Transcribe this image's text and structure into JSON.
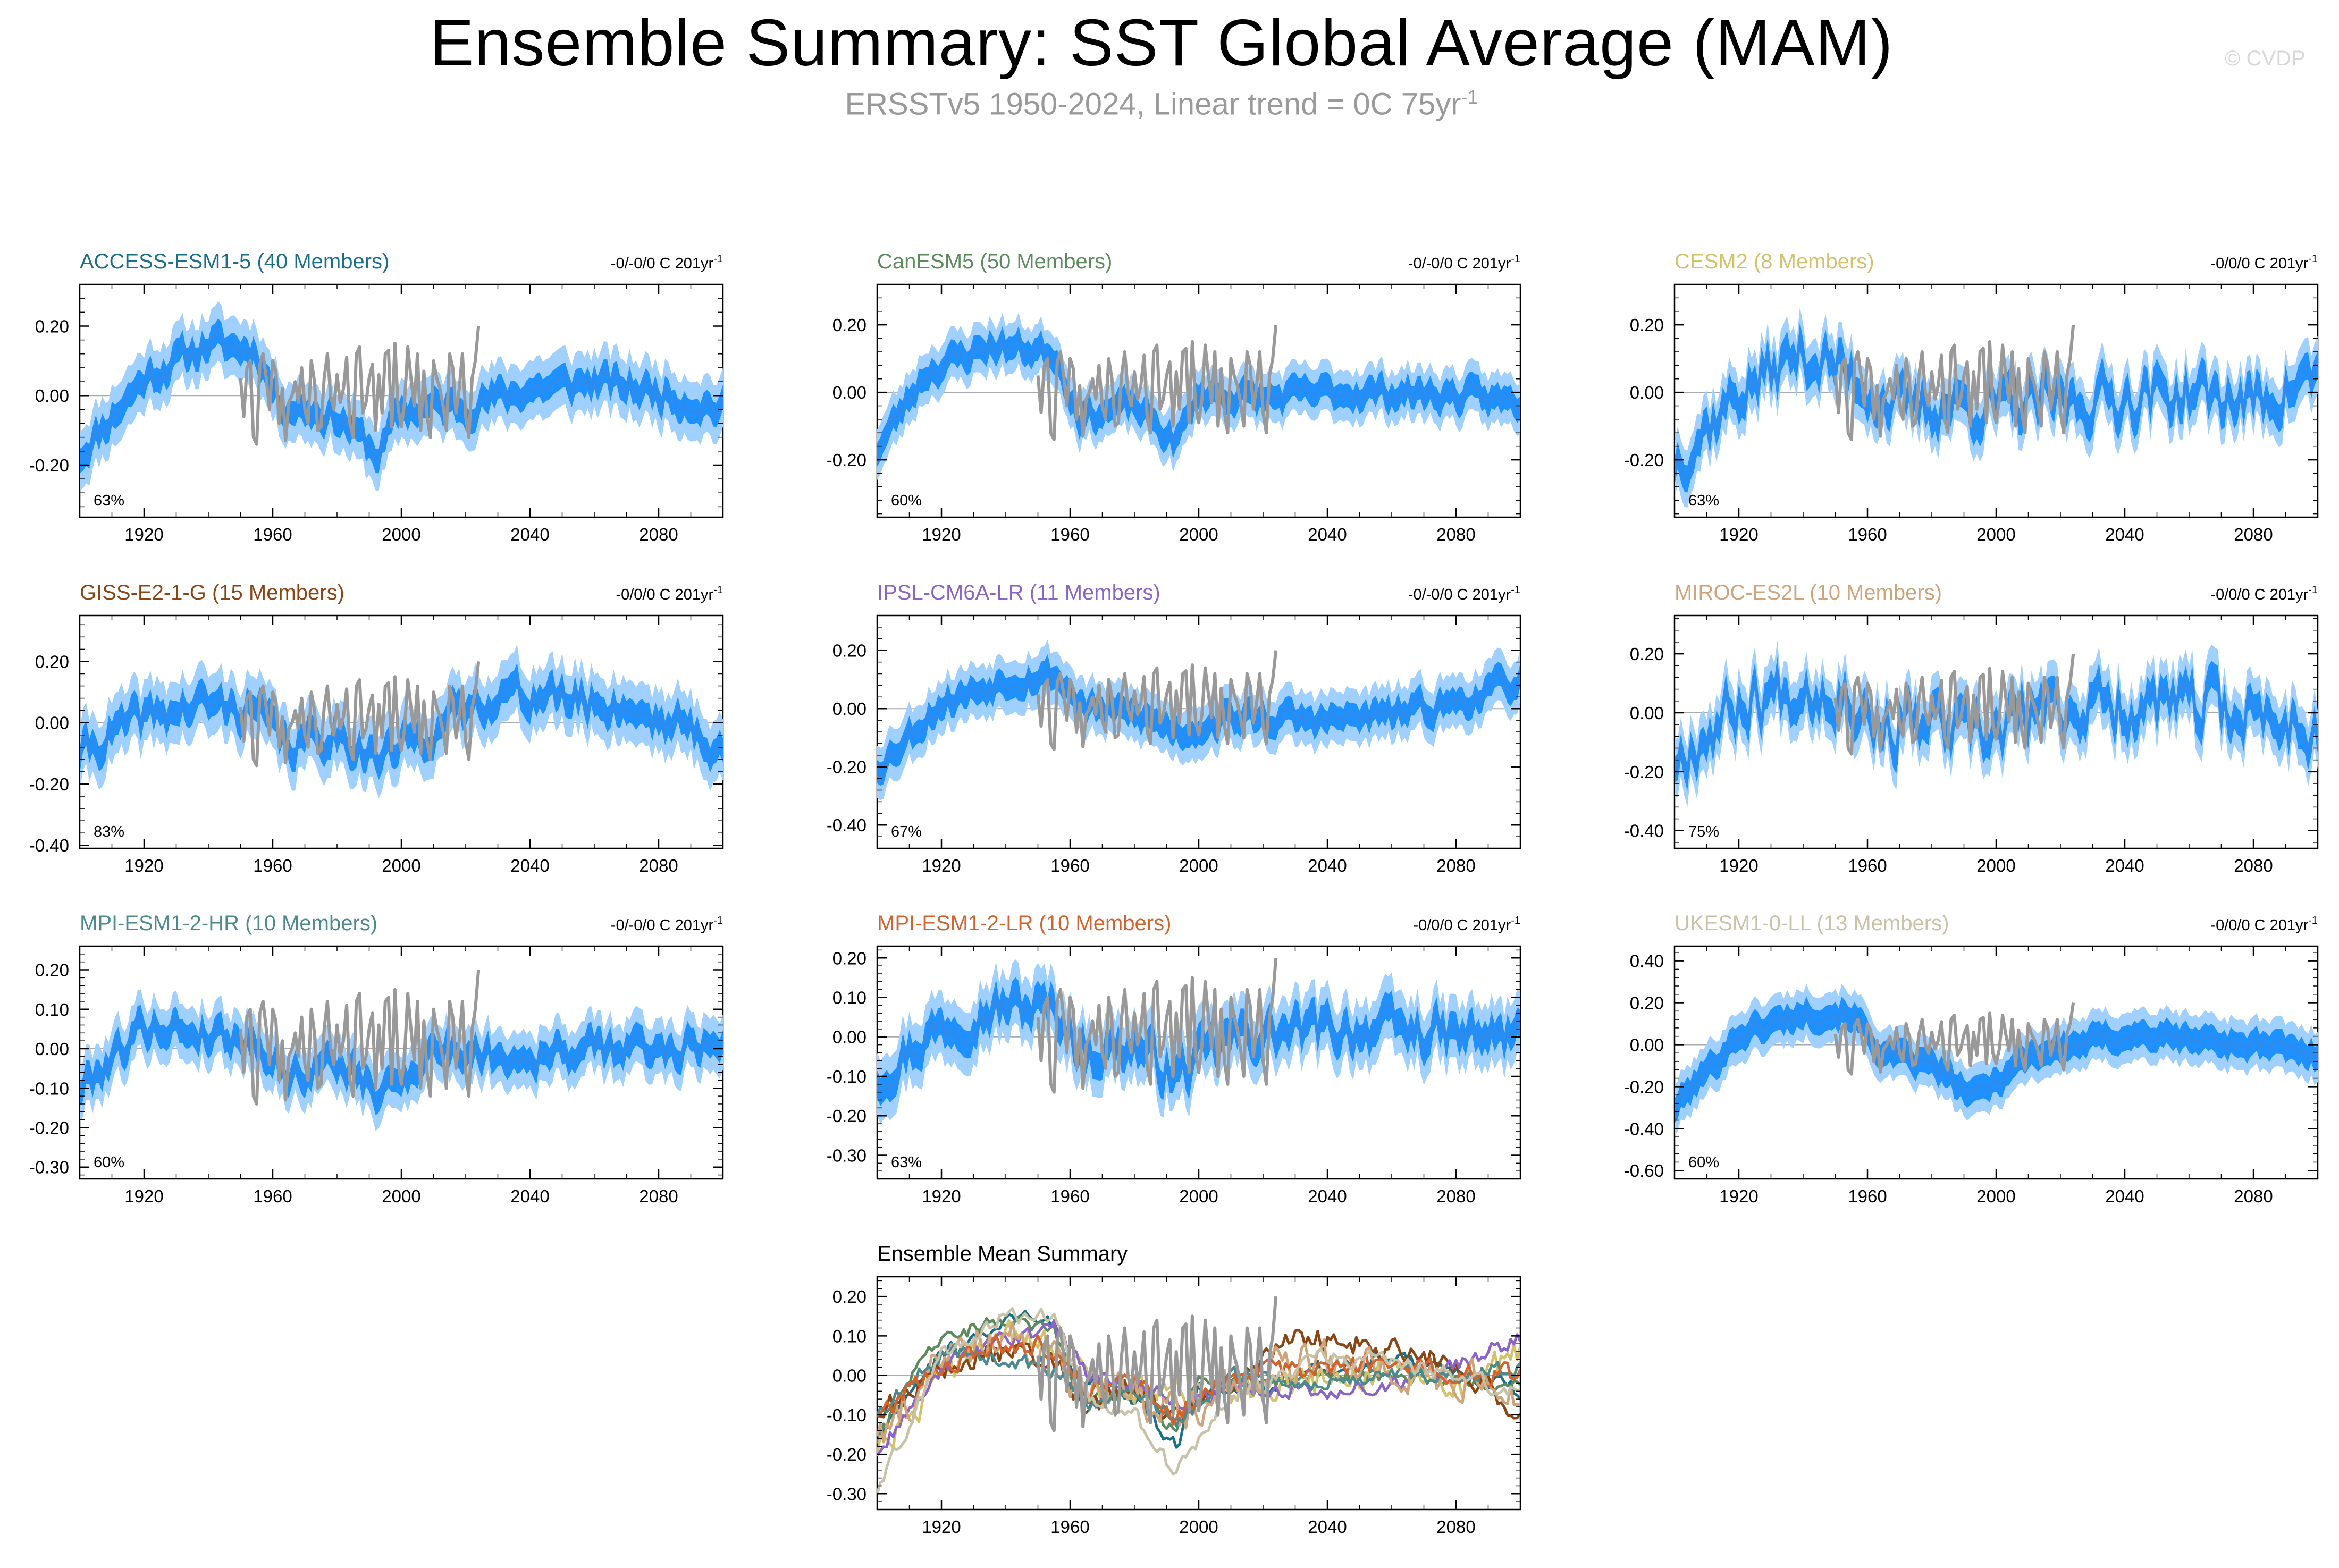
{
  "header": {
    "title": "Ensemble Summary: SST Global Average (MAM)",
    "subtitle_main": "ERSSTv5 1950-2024, Linear trend = 0C 75yr",
    "subtitle_sup": "-1",
    "watermark": "© CVDP"
  },
  "colors": {
    "ensemble_mean": "#2b8cee",
    "inner_spread": "#1e90ff",
    "outer_spread": "#9fd0ff",
    "observations": "#999999"
  },
  "chart_data": [
    {
      "type": "line",
      "title": "ACCESS-ESM1-5 (40 Members)",
      "title_color": "#1a6f8a",
      "trend_main": "-0/-0/0 C 201yr",
      "trend_sup": "-1",
      "percent": "63%",
      "ylim": [
        -0.35,
        0.32
      ],
      "yticks": [
        -0.2,
        0.0,
        0.2
      ],
      "ytick_labels": [
        "-0.20",
        "0.00",
        "0.20"
      ],
      "xlim": [
        1900,
        2100
      ],
      "xticks": [
        1920,
        1960,
        2000,
        2040,
        2080
      ],
      "xtick_labels": [
        "1920",
        "1960",
        "2000",
        "2040",
        "2080"
      ],
      "anchors": [
        [
          1900,
          -0.17
        ],
        [
          1920,
          0.05
        ],
        [
          1940,
          0.15
        ],
        [
          1955,
          0.13
        ],
        [
          1962,
          -0.02
        ],
        [
          1980,
          -0.06
        ],
        [
          1993,
          -0.17
        ],
        [
          2000,
          -0.04
        ],
        [
          2020,
          -0.03
        ],
        [
          2040,
          0.02
        ],
        [
          2060,
          0.04
        ],
        [
          2080,
          0.01
        ],
        [
          2100,
          -0.04
        ]
      ],
      "seed": 11,
      "noise": 0.035,
      "inner": 0.035,
      "outer": 0.085
    },
    {
      "type": "line",
      "title": "CanESM5 (50 Members)",
      "title_color": "#5b8a5d",
      "trend_main": "-0/-0/0 C 201yr",
      "trend_sup": "-1",
      "percent": "60%",
      "ylim": [
        -0.37,
        0.32
      ],
      "yticks": [
        -0.2,
        0.0,
        0.2
      ],
      "ytick_labels": [
        "-0.20",
        "0.00",
        "0.20"
      ],
      "xlim": [
        1900,
        2100
      ],
      "xticks": [
        1920,
        1960,
        2000,
        2040,
        2080
      ],
      "xtick_labels": [
        "1920",
        "1960",
        "2000",
        "2040",
        "2080"
      ],
      "anchors": [
        [
          1900,
          -0.17
        ],
        [
          1915,
          0.06
        ],
        [
          1935,
          0.14
        ],
        [
          1955,
          0.12
        ],
        [
          1963,
          -0.07
        ],
        [
          1980,
          -0.04
        ],
        [
          1993,
          -0.15
        ],
        [
          2000,
          0.0
        ],
        [
          2020,
          -0.02
        ],
        [
          2040,
          0.0
        ],
        [
          2060,
          0.0
        ],
        [
          2080,
          -0.01
        ],
        [
          2100,
          -0.03
        ]
      ],
      "seed": 23,
      "noise": 0.03,
      "inner": 0.035,
      "outer": 0.075
    },
    {
      "type": "line",
      "title": "CESM2 (8 Members)",
      "title_color": "#d3c16b",
      "trend_main": "-0/0/0 C 201yr",
      "trend_sup": "-1",
      "percent": "63%",
      "ylim": [
        -0.37,
        0.32
      ],
      "yticks": [
        -0.2,
        0.0,
        0.2
      ],
      "ytick_labels": [
        "-0.20",
        "0.00",
        "0.20"
      ],
      "xlim": [
        1900,
        2100
      ],
      "xticks": [
        1920,
        1960,
        2000,
        2040,
        2080
      ],
      "xtick_labels": [
        "1920",
        "1960",
        "2000",
        "2040",
        "2080"
      ],
      "anchors": [
        [
          1900,
          -0.2
        ],
        [
          1920,
          0.0
        ],
        [
          1940,
          0.12
        ],
        [
          1955,
          0.05
        ],
        [
          1970,
          -0.05
        ],
        [
          1990,
          -0.03
        ],
        [
          2000,
          -0.05
        ],
        [
          2030,
          -0.02
        ],
        [
          2060,
          0.0
        ],
        [
          2080,
          -0.03
        ],
        [
          2100,
          0.05
        ]
      ],
      "seed": 37,
      "noise": 0.07,
      "inner": 0.04,
      "outer": 0.085
    },
    {
      "type": "line",
      "title": "GISS-E2-1-G (15 Members)",
      "title_color": "#8b4513",
      "trend_main": "-0/0/0 C 201yr",
      "trend_sup": "-1",
      "percent": "83%",
      "ylim": [
        -0.41,
        0.35
      ],
      "yticks": [
        -0.4,
        -0.2,
        0.0,
        0.2
      ],
      "ytick_labels": [
        "-0.40",
        "-0.20",
        "0.00",
        "0.20"
      ],
      "xlim": [
        1900,
        2100
      ],
      "xticks": [
        1920,
        1960,
        2000,
        2040,
        2080
      ],
      "xtick_labels": [
        "1920",
        "1960",
        "2000",
        "2040",
        "2080"
      ],
      "anchors": [
        [
          1900,
          -0.1
        ],
        [
          1920,
          0.02
        ],
        [
          1940,
          0.06
        ],
        [
          1955,
          0.04
        ],
        [
          1965,
          -0.08
        ],
        [
          1980,
          -0.03
        ],
        [
          1993,
          -0.12
        ],
        [
          2010,
          -0.02
        ],
        [
          2030,
          0.1
        ],
        [
          2050,
          0.08
        ],
        [
          2070,
          0.05
        ],
        [
          2090,
          -0.02
        ],
        [
          2100,
          -0.1
        ]
      ],
      "seed": 41,
      "noise": 0.05,
      "inner": 0.04,
      "outer": 0.1
    },
    {
      "type": "line",
      "title": "IPSL-CM6A-LR (11 Members)",
      "title_color": "#8a64c8",
      "trend_main": "-0/-0/0 C 201yr",
      "trend_sup": "-1",
      "percent": "67%",
      "ylim": [
        -0.48,
        0.32
      ],
      "yticks": [
        -0.4,
        -0.2,
        0.0,
        0.2
      ],
      "ytick_labels": [
        "-0.40",
        "-0.20",
        "0.00",
        "0.20"
      ],
      "xlim": [
        1900,
        2100
      ],
      "xticks": [
        1920,
        1960,
        2000,
        2040,
        2080
      ],
      "xtick_labels": [
        "1920",
        "1960",
        "2000",
        "2040",
        "2080"
      ],
      "anchors": [
        [
          1900,
          -0.2
        ],
        [
          1920,
          0.02
        ],
        [
          1940,
          0.1
        ],
        [
          1955,
          0.12
        ],
        [
          1965,
          0.0
        ],
        [
          1980,
          -0.02
        ],
        [
          1995,
          -0.08
        ],
        [
          2010,
          -0.03
        ],
        [
          2040,
          -0.04
        ],
        [
          2060,
          -0.02
        ],
        [
          2080,
          0.02
        ],
        [
          2100,
          0.1
        ]
      ],
      "seed": 53,
      "noise": 0.035,
      "inner": 0.04,
      "outer": 0.09
    },
    {
      "type": "line",
      "title": "MIROC-ES2L (10 Members)",
      "title_color": "#cfa47a",
      "trend_main": "-0/0/0 C 201yr",
      "trend_sup": "-1",
      "percent": "75%",
      "ylim": [
        -0.46,
        0.33
      ],
      "yticks": [
        -0.4,
        -0.2,
        0.0,
        0.2
      ],
      "ytick_labels": [
        "-0.40",
        "-0.20",
        "0.00",
        "0.20"
      ],
      "xlim": [
        1900,
        2100
      ],
      "xticks": [
        1920,
        1960,
        2000,
        2040,
        2080
      ],
      "xtick_labels": [
        "1920",
        "1960",
        "2000",
        "2040",
        "2080"
      ],
      "anchors": [
        [
          1900,
          -0.15
        ],
        [
          1920,
          0.03
        ],
        [
          1940,
          0.1
        ],
        [
          1955,
          0.06
        ],
        [
          1965,
          -0.05
        ],
        [
          1980,
          -0.04
        ],
        [
          1995,
          -0.1
        ],
        [
          2010,
          0.0
        ],
        [
          2040,
          0.03
        ],
        [
          2060,
          0.02
        ],
        [
          2080,
          0.0
        ],
        [
          2100,
          -0.05
        ]
      ],
      "seed": 67,
      "noise": 0.09,
      "inner": 0.045,
      "outer": 0.1
    },
    {
      "type": "line",
      "title": "MPI-ESM1-2-HR (10 Members)",
      "title_color": "#4d8a8e",
      "trend_main": "-0/-0/0 C 201yr",
      "trend_sup": "-1",
      "percent": "60%",
      "ylim": [
        -0.33,
        0.26
      ],
      "yticks": [
        -0.3,
        -0.2,
        -0.1,
        0.0,
        0.1,
        0.2
      ],
      "ytick_labels": [
        "-0.30",
        "-0.20",
        "-0.10",
        "0.00",
        "0.10",
        "0.20"
      ],
      "xlim": [
        1900,
        2100
      ],
      "xticks": [
        1920,
        1960,
        2000,
        2040,
        2080
      ],
      "xtick_labels": [
        "1920",
        "1960",
        "2000",
        "2040",
        "2080"
      ],
      "anchors": [
        [
          1900,
          -0.1
        ],
        [
          1920,
          0.06
        ],
        [
          1940,
          0.04
        ],
        [
          1955,
          0.02
        ],
        [
          1965,
          -0.07
        ],
        [
          1980,
          -0.03
        ],
        [
          1993,
          -0.12
        ],
        [
          2010,
          0.0
        ],
        [
          2040,
          -0.02
        ],
        [
          2060,
          0.0
        ],
        [
          2080,
          0.0
        ],
        [
          2100,
          0.02
        ]
      ],
      "seed": 79,
      "noise": 0.035,
      "inner": 0.03,
      "outer": 0.07
    },
    {
      "type": "line",
      "title": "MPI-ESM1-2-LR (10 Members)",
      "title_color": "#d2622e",
      "trend_main": "-0/0/0 C 201yr",
      "trend_sup": "-1",
      "percent": "63%",
      "ylim": [
        -0.36,
        0.23
      ],
      "yticks": [
        -0.3,
        -0.2,
        -0.1,
        0.0,
        0.1,
        0.2
      ],
      "ytick_labels": [
        "-0.30",
        "-0.20",
        "-0.10",
        "0.00",
        "0.10",
        "0.20"
      ],
      "xlim": [
        1900,
        2100
      ],
      "xticks": [
        1920,
        1960,
        2000,
        2040,
        2080
      ],
      "xtick_labels": [
        "1920",
        "1960",
        "2000",
        "2040",
        "2080"
      ],
      "anchors": [
        [
          1900,
          -0.1
        ],
        [
          1920,
          0.03
        ],
        [
          1940,
          0.08
        ],
        [
          1955,
          0.07
        ],
        [
          1965,
          -0.04
        ],
        [
          1980,
          -0.02
        ],
        [
          1993,
          -0.1
        ],
        [
          2010,
          0.0
        ],
        [
          2040,
          0.02
        ],
        [
          2060,
          0.02
        ],
        [
          2080,
          0.0
        ],
        [
          2100,
          0.0
        ]
      ],
      "seed": 97,
      "noise": 0.045,
      "inner": 0.035,
      "outer": 0.08
    },
    {
      "type": "line",
      "title": "UKESM1-0-LL (13 Members)",
      "title_color": "#c8c3a8",
      "trend_main": "-0/0/0 C 201yr",
      "trend_sup": "-1",
      "percent": "60%",
      "ylim": [
        -0.64,
        0.47
      ],
      "yticks": [
        -0.6,
        -0.4,
        -0.2,
        0.0,
        0.2,
        0.4
      ],
      "ytick_labels": [
        "-0.60",
        "-0.40",
        "-0.20",
        "0.00",
        "0.20",
        "0.40"
      ],
      "xlim": [
        1900,
        2100
      ],
      "xticks": [
        1920,
        1960,
        2000,
        2040,
        2080
      ],
      "xtick_labels": [
        "1920",
        "1960",
        "2000",
        "2040",
        "2080"
      ],
      "anchors": [
        [
          1900,
          -0.3
        ],
        [
          1920,
          0.05
        ],
        [
          1940,
          0.15
        ],
        [
          1955,
          0.15
        ],
        [
          1965,
          -0.05
        ],
        [
          1980,
          -0.1
        ],
        [
          1993,
          -0.25
        ],
        [
          2010,
          -0.05
        ],
        [
          2040,
          0.05
        ],
        [
          2060,
          0.03
        ],
        [
          2080,
          0.0
        ],
        [
          2100,
          -0.05
        ]
      ],
      "seed": 101,
      "noise": 0.035,
      "inner": 0.06,
      "outer": 0.12
    },
    {
      "type": "line",
      "title": "Ensemble Mean Summary",
      "title_color": "#000000",
      "ylim": [
        -0.34,
        0.25
      ],
      "yticks": [
        -0.3,
        -0.2,
        -0.1,
        0.0,
        0.1,
        0.2
      ],
      "ytick_labels": [
        "-0.30",
        "-0.20",
        "-0.10",
        "0.00",
        "0.10",
        "0.20"
      ],
      "xlim": [
        1900,
        2100
      ],
      "xticks": [
        1920,
        1960,
        2000,
        2040,
        2080
      ],
      "xtick_labels": [
        "1920",
        "1960",
        "2000",
        "2040",
        "2080"
      ],
      "summary": true
    }
  ],
  "observations": {
    "name": "ERSSTv5",
    "years": [
      1950,
      2024
    ],
    "values": [
      0.05,
      -0.06,
      0.08,
      0.1,
      -0.12,
      -0.14,
      0.09,
      0.12,
      0.05,
      -0.04,
      0.1,
      0.07,
      -0.08,
      0.02,
      -0.13,
      -0.02,
      0.0,
      0.04,
      -0.02,
      0.08,
      -0.04,
      -0.08,
      0.1,
      0.04,
      -0.1,
      -0.09,
      0.05,
      0.12,
      0.0,
      -0.04,
      0.06,
      -0.02,
      0.02,
      0.11,
      -0.08,
      -0.12,
      0.12,
      0.14,
      -0.05,
      -0.02,
      0.05,
      0.09,
      -0.1,
      0.06,
      -0.05,
      0.12,
      0.13,
      -0.09,
      0.15,
      -0.04,
      -0.09,
      -0.02,
      0.14,
      0.05,
      -0.03,
      0.12,
      -0.1,
      0.07,
      -0.06,
      -0.12,
      0.1,
      0.05,
      0.02,
      -0.03,
      -0.1,
      0.12,
      0.08,
      -0.05,
      0.02,
      0.12,
      -0.06,
      -0.12,
      0.05,
      0.1,
      0.2
    ]
  }
}
